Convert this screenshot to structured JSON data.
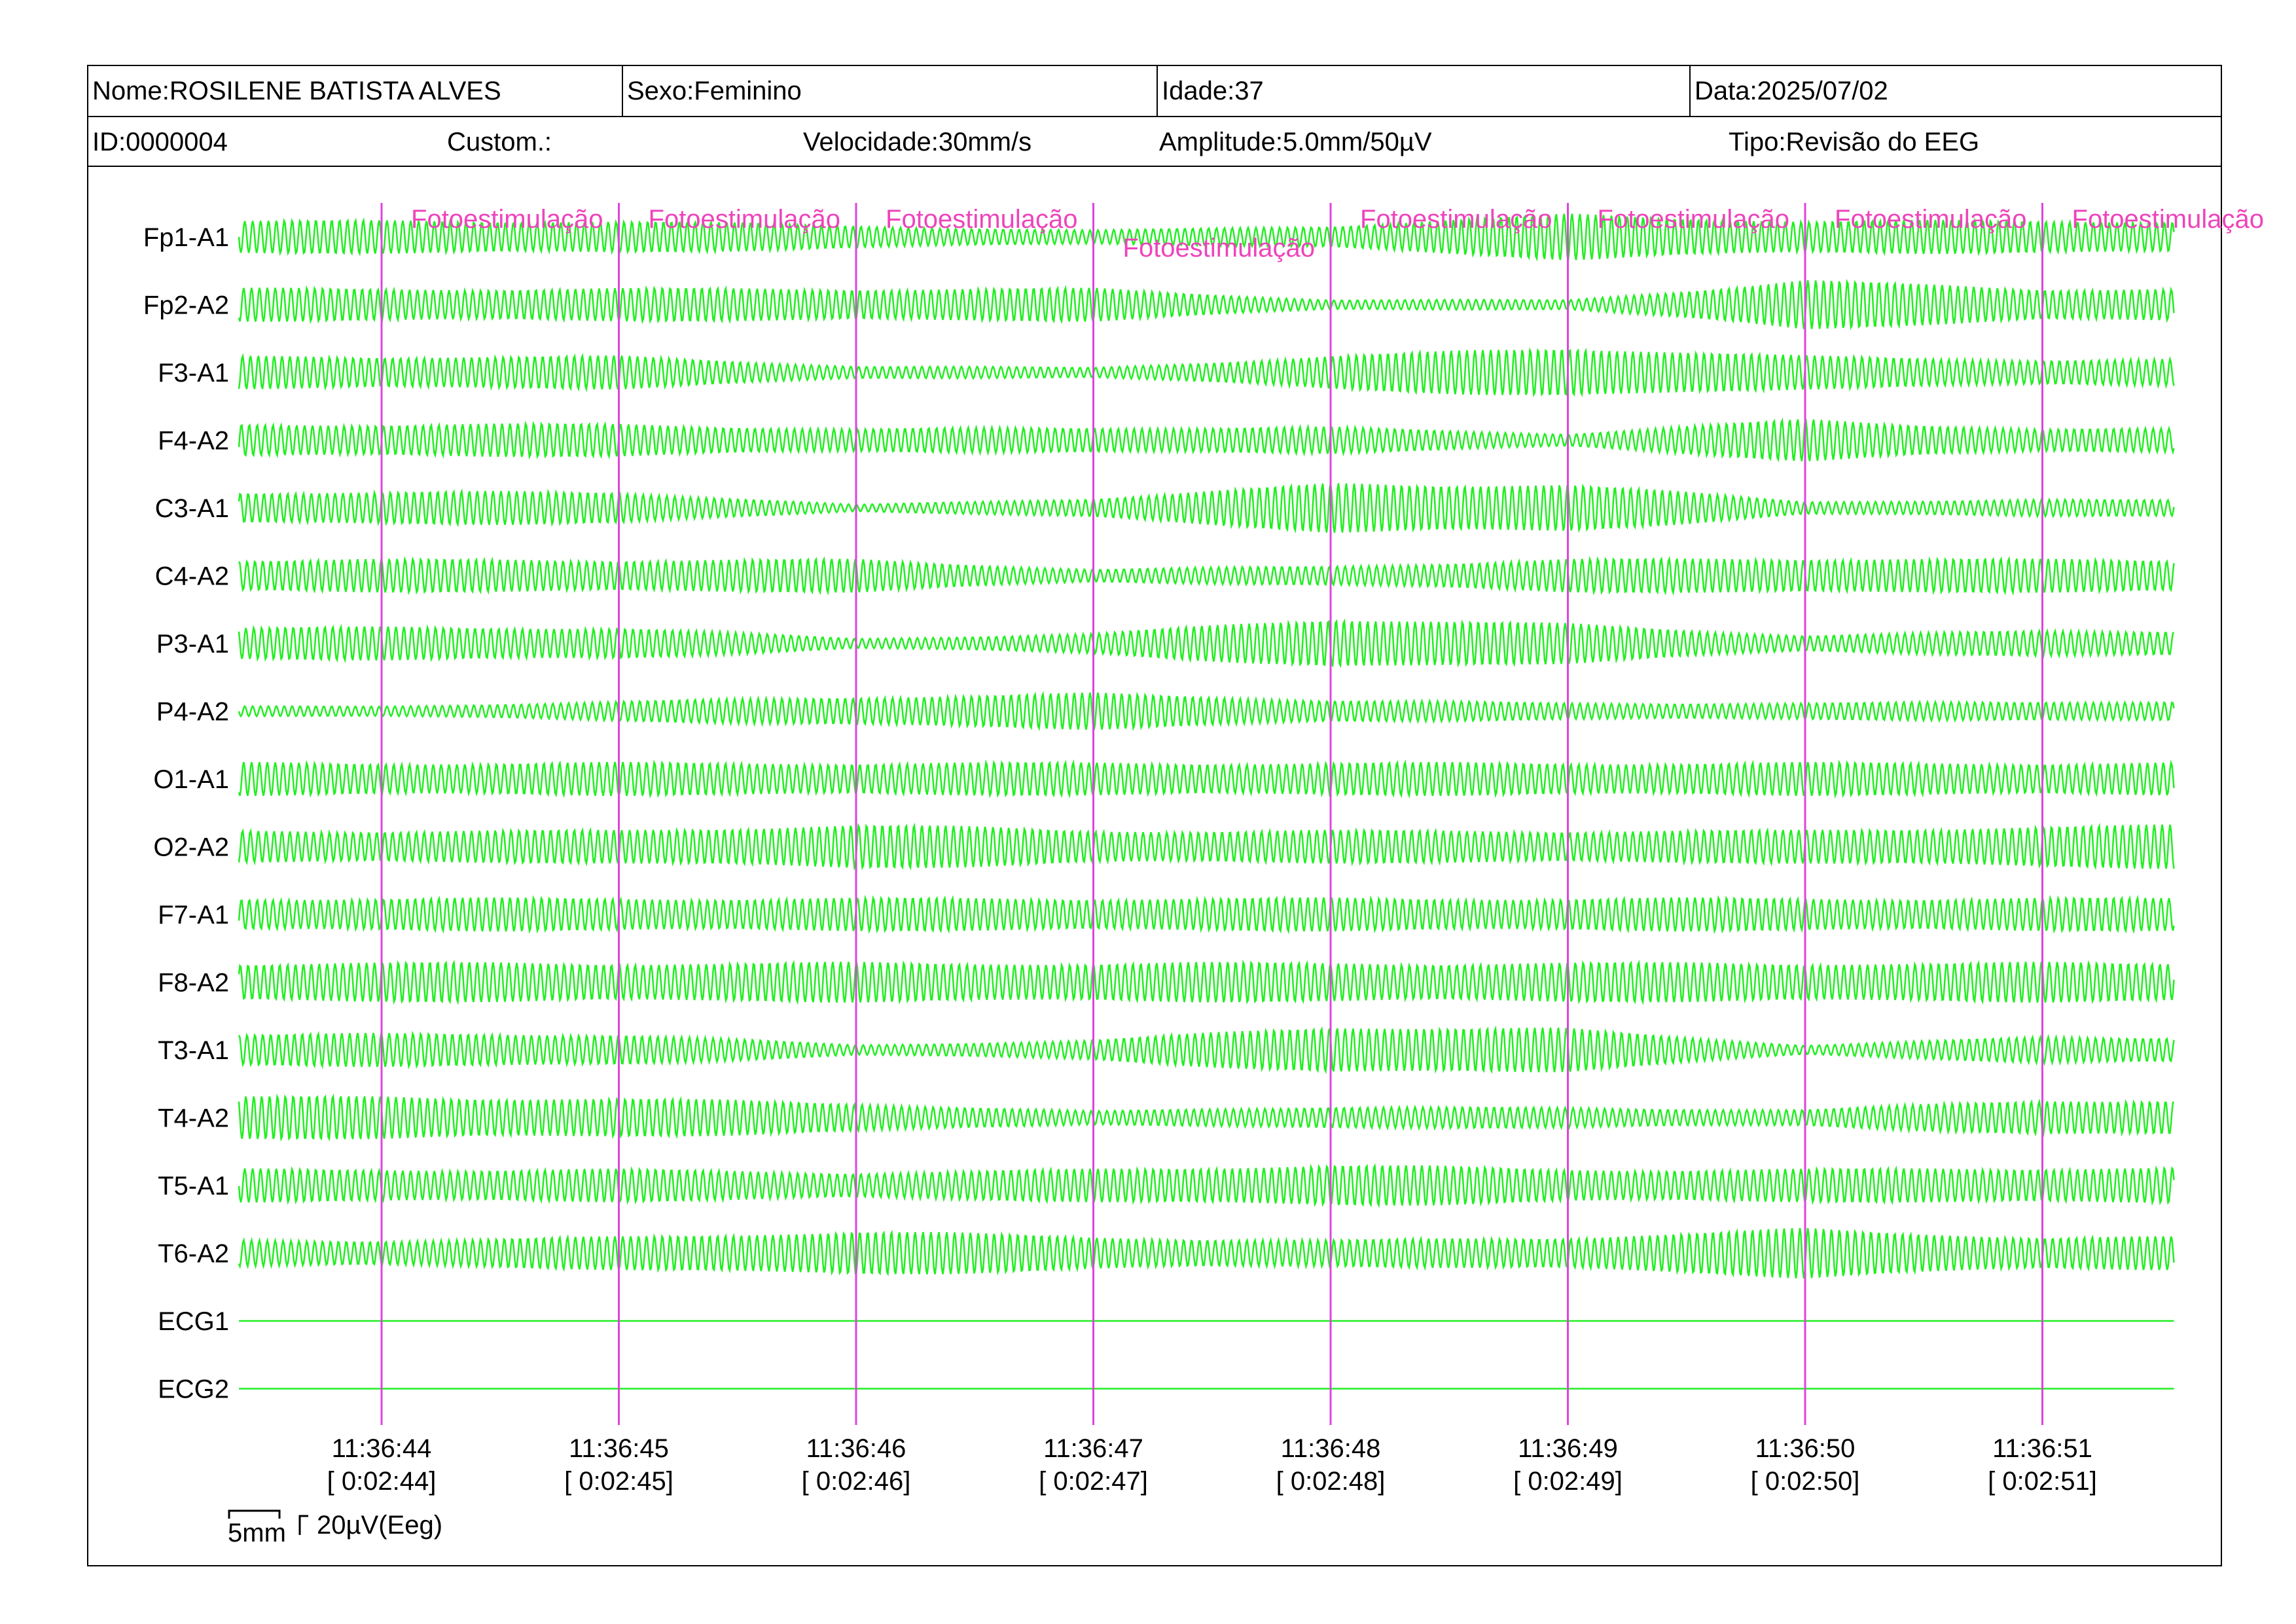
{
  "header": {
    "nome": "Nome:ROSILENE BATISTA ALVES",
    "sexo": "Sexo:Feminino",
    "idade": "Idade:37",
    "data": "Data:2025/07/02",
    "id": "ID:0000004",
    "custom": "Custom.:",
    "velocidade": "Velocidade:30mm/s",
    "amplitude": "Amplitude:5.0mm/50µV",
    "tipo": "Tipo:Revisão do EEG"
  },
  "scale_bar": {
    "time_label": "5mm",
    "amp_label": "20µV(Eeg)"
  },
  "colors": {
    "trace": "#22ee22",
    "marker": "#dd44dd",
    "annotation": "#ee44bb"
  },
  "chart_data": {
    "type": "line",
    "title": "",
    "xlabel": "",
    "ylabel": "",
    "grid": false,
    "channels": [
      "Fp1-A1",
      "Fp2-A2",
      "F3-A1",
      "F4-A2",
      "C3-A1",
      "C4-A2",
      "P3-A1",
      "P4-A2",
      "O1-A1",
      "O2-A2",
      "F7-A1",
      "F8-A2",
      "T3-A1",
      "T4-A2",
      "T5-A1",
      "T6-A2",
      "ECG1",
      "ECG2"
    ],
    "amplitude_envelope": [
      [
        1.0,
        1.0,
        0.7,
        0.4,
        0.7,
        1.4,
        1.0,
        1.0
      ],
      [
        1.0,
        1.0,
        1.0,
        1.0,
        0.3,
        0.3,
        1.5,
        1.0
      ],
      [
        1.0,
        1.0,
        0.4,
        0.3,
        1.0,
        1.6,
        1.0,
        0.8
      ],
      [
        1.0,
        1.0,
        0.7,
        0.8,
        0.8,
        0.4,
        1.3,
        0.7
      ],
      [
        1.0,
        1.0,
        0.2,
        0.6,
        1.5,
        1.5,
        0.4,
        0.5
      ],
      [
        1.0,
        1.0,
        1.0,
        0.4,
        0.6,
        1.0,
        1.1,
        1.0
      ],
      [
        1.0,
        1.0,
        0.3,
        0.6,
        1.6,
        1.2,
        0.5,
        0.8
      ],
      [
        0.3,
        0.6,
        0.9,
        1.1,
        0.7,
        0.5,
        0.5,
        0.6
      ],
      [
        1.0,
        1.0,
        1.0,
        1.0,
        1.0,
        1.0,
        1.0,
        1.0
      ],
      [
        1.0,
        1.0,
        1.4,
        1.0,
        1.0,
        1.0,
        1.0,
        1.3
      ],
      [
        1.0,
        1.0,
        1.0,
        1.0,
        1.0,
        1.0,
        1.0,
        1.0
      ],
      [
        1.2,
        1.2,
        1.2,
        1.2,
        1.2,
        1.2,
        1.2,
        1.2
      ],
      [
        1.0,
        1.0,
        0.3,
        0.6,
        1.5,
        1.3,
        0.3,
        0.8
      ],
      [
        1.3,
        1.2,
        0.9,
        0.4,
        0.7,
        0.6,
        0.5,
        1.1
      ],
      [
        1.0,
        1.0,
        0.8,
        1.0,
        1.3,
        1.0,
        1.0,
        1.1
      ],
      [
        0.8,
        1.0,
        1.4,
        1.0,
        0.8,
        1.0,
        1.5,
        1.0
      ],
      [
        0,
        0,
        0,
        0,
        0,
        0,
        0,
        0
      ],
      [
        0,
        0,
        0,
        0,
        0,
        0,
        0,
        0
      ]
    ],
    "time_ticks": [
      {
        "clock": "11:36:44",
        "elapsed": "[ 0:02:44]"
      },
      {
        "clock": "11:36:45",
        "elapsed": "[ 0:02:45]"
      },
      {
        "clock": "11:36:46",
        "elapsed": "[ 0:02:46]"
      },
      {
        "clock": "11:36:47",
        "elapsed": "[ 0:02:47]"
      },
      {
        "clock": "11:36:48",
        "elapsed": "[ 0:02:48]"
      },
      {
        "clock": "11:36:49",
        "elapsed": "[ 0:02:49]"
      },
      {
        "clock": "11:36:50",
        "elapsed": "[ 0:02:50]"
      },
      {
        "clock": "11:36:51",
        "elapsed": "[ 0:02:51]"
      }
    ],
    "annotations": [
      {
        "text": "Fotoestimulação",
        "second": 0,
        "row": 0
      },
      {
        "text": "Fotoestimulação",
        "second": 1,
        "row": 0
      },
      {
        "text": "Fotoestimulação",
        "second": 2,
        "row": 0
      },
      {
        "text": "Fotoestimulação",
        "second": 3,
        "row": 1
      },
      {
        "text": "Fotoestimulação",
        "second": 4,
        "row": 0
      },
      {
        "text": "Fotoestimulação",
        "second": 5,
        "row": 0
      },
      {
        "text": "Fotoestimulação",
        "second": 6,
        "row": 0
      },
      {
        "text": "Fotoestimulação",
        "second": 7,
        "row": 0
      }
    ]
  }
}
